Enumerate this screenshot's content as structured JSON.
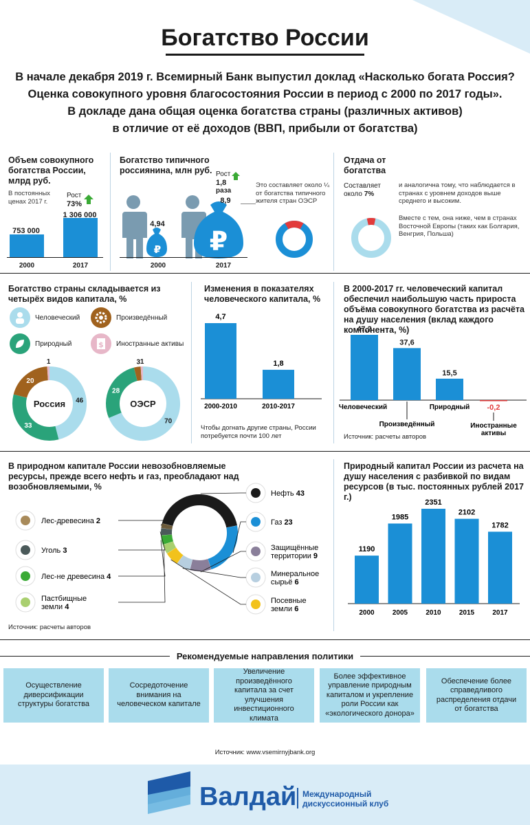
{
  "title": "Богатство России",
  "intro": [
    "В начале декабря 2019 г. Всемирный Банк выпустил доклад «Насколько богата Россия?",
    "Оценка совокупного уровня благосостояния России в период с 2000 по 2017 годы».",
    "В докладе дана общая оценка богатства страны (различных активов)",
    "в отличие от её доходов (ВВП, прибыли от богатства)"
  ],
  "colors": {
    "accent": "#1b8fd6",
    "light": "#aadcec",
    "green": "#3aaa35",
    "brown": "#a0621e",
    "red": "#e23b3b"
  },
  "s1": {
    "title": "Объем совокупного богатства России, млрд руб.",
    "note": "В постоянных ценах 2017 г.",
    "growth_label": "Рост",
    "growth_value": "73%",
    "values_text": [
      "753 000",
      "1 306 000"
    ],
    "years": [
      "2000",
      "2017"
    ]
  },
  "s2": {
    "title": "Богатство типичного россиянина, млн руб.",
    "values_text": [
      "4,94",
      "8,9"
    ],
    "years": [
      "2000",
      "2017"
    ],
    "growth_label": "Рост",
    "growth_value": "1,8",
    "growth_unit": "раза",
    "note": "Это составляет около ¼ от богатства типичного жителя стран ОЭСР"
  },
  "s3": {
    "title": "Отдача от богатства",
    "left_text": "Составляет около",
    "left_value": "7%",
    "right1": "и аналогична тому, что наблюдается в странах с уровнем доходов выше среднего и высоким.",
    "right2": "Вместе с тем, она ниже, чем в странах Восточной Европы (таких как Болгария, Венгрия, Польша)"
  },
  "s4": {
    "title": "Богатство страны складывается из четырёх видов капитала, %",
    "legend": [
      "Человеческий",
      "Произведённый",
      "Природный",
      "Иностранные активы"
    ],
    "donut_labels": [
      "Россия",
      "ОЭСР"
    ]
  },
  "s5": {
    "title": "Изменения в показателях человеческого капитала, %",
    "note": "Чтобы догнать другие страны, России потребуется почти 100 лет"
  },
  "s6": {
    "title": "В 2000-2017 гг. человеческий капитал обеспечил наибольшую часть прироста объёма совокупного богатства из расчёта на душу населения (вклад каждого компонента, %)",
    "source": "Источник: расчеты авторов"
  },
  "s7": {
    "title": "В природном капитале России невозобновляемые ресурсы, прежде всего нефть и газ, преобладают над возобновляемыми, %",
    "source": "Источник: расчеты авторов"
  },
  "s8": {
    "title": "Природный капитал России из расчета на душу населения с разбивкой по видам ресурсов (в тыс. постоянных рублей 2017 г.)"
  },
  "policy": {
    "title": "Рекомендуемые направления политики",
    "items": [
      "Осуществление диверсификации структуры богатства",
      "Сосредоточение внимания на человеческом капитале",
      "Увеличение произведённого капитала за счет улучшения инвестиционного климата",
      "Более эффективное управление природным капиталом и укрепление роли России как «экологического донора»",
      "Обеспечение более справедливого распределения отдачи от богатства"
    ]
  },
  "source": "Источник: www.vsemirnyjbank.org",
  "brand": {
    "name": "Валдай",
    "sub1": "Международный",
    "sub2": "дискуссионный клуб"
  },
  "chart_data": [
    {
      "type": "bar",
      "title": "Объем совокупного богатства России, млрд руб.",
      "categories": [
        "2000",
        "2017"
      ],
      "values": [
        753000,
        1306000
      ]
    },
    {
      "type": "bar",
      "title": "Богатство типичного россиянина, млн руб.",
      "categories": [
        "2000",
        "2017"
      ],
      "values": [
        4.94,
        8.9
      ]
    },
    {
      "type": "pie",
      "title": "Отдача от богатства",
      "categories": [
        "Отдача"
      ],
      "values": [
        7
      ]
    },
    {
      "type": "pie",
      "title": "Россия",
      "categories": [
        "Человеческий",
        "Природный",
        "Произведённый",
        "Иностранные активы"
      ],
      "values": [
        46,
        33,
        20,
        1
      ]
    },
    {
      "type": "pie",
      "title": "ОЭСР",
      "categories": [
        "Человеческий",
        "Природный",
        "Произведённый",
        "Иностранные активы"
      ],
      "values": [
        70,
        28,
        3,
        1
      ]
    },
    {
      "type": "bar",
      "title": "Изменения в показателях человеческого капитала, %",
      "categories": [
        "2000-2010",
        "2010-2017"
      ],
      "values": [
        4.7,
        1.8
      ]
    },
    {
      "type": "bar",
      "title": "В 2000-2017 гг. человеческий капитал обеспечил наибольшую часть прироста",
      "categories": [
        "Человеческий",
        "Произведённый",
        "Природный",
        "Иностранные активы"
      ],
      "values": [
        47.2,
        37.6,
        15.5,
        -0.2
      ]
    },
    {
      "type": "pie",
      "title": "В природном капитале России невозобновляемые ресурсы преобладают",
      "categories": [
        "Нефть",
        "Газ",
        "Защищённые территории",
        "Минеральное сырьё",
        "Посевные земли",
        "Пастбищные земли",
        "Лес-не древесина",
        "Уголь",
        "Лес-древесина"
      ],
      "values": [
        43,
        23,
        9,
        6,
        6,
        4,
        4,
        3,
        2
      ]
    },
    {
      "type": "bar",
      "title": "Природный капитал России из расчета на душу населения",
      "categories": [
        "2000",
        "2005",
        "2010",
        "2015",
        "2017"
      ],
      "values": [
        1190,
        1985,
        2351,
        2102,
        1782
      ]
    }
  ]
}
